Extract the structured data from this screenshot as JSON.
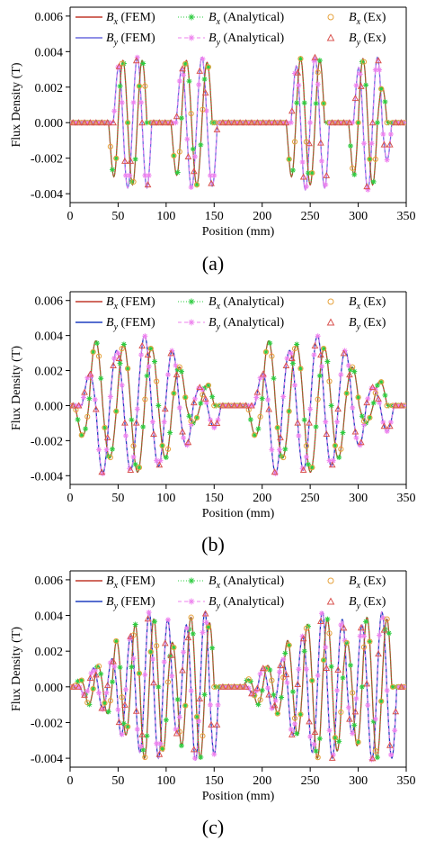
{
  "chart_data": [
    {
      "type": "line",
      "panel_label": "(a)",
      "xlabel": "Position (mm)",
      "ylabel": "Flux Density (T)",
      "xlim": [
        0,
        350
      ],
      "ylim": [
        -0.0045,
        0.0065
      ],
      "xticks": [
        "0",
        "50",
        "100",
        "150",
        "200",
        "250",
        "300",
        "350"
      ],
      "yticks": [
        "-0.004",
        "-0.002",
        "0.000",
        "0.002",
        "0.004",
        "0.006"
      ],
      "legend_position": "top",
      "legend": [
        {
          "sym": "B",
          "sub": "x",
          "text": " (FEM)",
          "color": "#c0392b",
          "style": "solid"
        },
        {
          "sym": "B",
          "sub": "x",
          "text": " (Analytical)",
          "color": "#2ecc40",
          "style": "dotted-star"
        },
        {
          "sym": "B",
          "sub": "x",
          "text": " (Ex)",
          "color": "#e6a23c",
          "style": "circle"
        },
        {
          "sym": "B",
          "sub": "y",
          "text": " (FEM)",
          "color": "#6a6adf",
          "style": "solid"
        },
        {
          "sym": "B",
          "sub": "y",
          "text": " (Analytical)",
          "color": "#ee82ee",
          "style": "dashed-star"
        },
        {
          "sym": "B",
          "sub": "y",
          "text": " (Ex)",
          "color": "#d9534f",
          "style": "triangle"
        }
      ],
      "series": [
        {
          "name": "Bx",
          "bursts": [
            {
              "x0": 40,
              "x1": 80,
              "peaks": [
                -0.0035,
                0.0035,
                -0.0035,
                0.0035
              ]
            },
            {
              "x0": 105,
              "x1": 148,
              "peaks": [
                -0.0034,
                0.0035,
                -0.0035,
                0.0034
              ]
            },
            {
              "x0": 225,
              "x1": 265,
              "peaks": [
                -0.0035,
                0.0036,
                -0.0035,
                0.0035
              ]
            },
            {
              "x0": 290,
              "x1": 330,
              "peaks": [
                -0.0034,
                0.0036,
                -0.0035,
                0.002
              ]
            }
          ]
        },
        {
          "name": "By",
          "phase": 0.25
        }
      ]
    },
    {
      "type": "line",
      "panel_label": "(b)",
      "xlabel": "Position (mm)",
      "ylabel": "Flux Density (T)",
      "xlim": [
        0,
        350
      ],
      "ylim": [
        -0.0045,
        0.0065
      ],
      "xticks": [
        "0",
        "50",
        "100",
        "150",
        "200",
        "250",
        "300",
        "350"
      ],
      "yticks": [
        "-0.004",
        "-0.002",
        "0.000",
        "0.002",
        "0.004",
        "0.006"
      ],
      "legend_position": "top",
      "legend": [
        {
          "sym": "B",
          "sub": "x",
          "text": " (FEM)",
          "color": "#c0392b",
          "style": "solid"
        },
        {
          "sym": "B",
          "sub": "x",
          "text": " (Analytical)",
          "color": "#2ecc40",
          "style": "dotted-star"
        },
        {
          "sym": "B",
          "sub": "x",
          "text": " (Ex)",
          "color": "#e6a23c",
          "style": "circle"
        },
        {
          "sym": "B",
          "sub": "y",
          "text": " (FEM)",
          "color": "#1f3fbf",
          "style": "solid"
        },
        {
          "sym": "B",
          "sub": "y",
          "text": " (Analytical)",
          "color": "#ee82ee",
          "style": "dashed-star"
        },
        {
          "sym": "B",
          "sub": "y",
          "text": " (Ex)",
          "color": "#d9534f",
          "style": "triangle"
        }
      ],
      "series": [
        {
          "name": "Bx",
          "bursts": [
            {
              "x0": 5,
              "x1": 150,
              "peaks": [
                -0.002,
                0.0037,
                -0.003,
                0.0035,
                -0.0038,
                0.0033,
                -0.003,
                0.0022,
                -0.001,
                0.0012
              ]
            },
            {
              "x0": 185,
              "x1": 330,
              "peaks": [
                -0.002,
                0.0037,
                -0.003,
                0.0035,
                -0.0038,
                0.0033,
                -0.003,
                0.0022,
                -0.001,
                0.0014
              ]
            }
          ]
        },
        {
          "name": "By",
          "phase": 0.25
        }
      ]
    },
    {
      "type": "line",
      "panel_label": "(c)",
      "xlabel": "Position (mm)",
      "ylabel": "Flux Density (T)",
      "xlim": [
        0,
        350
      ],
      "ylim": [
        -0.0045,
        0.0065
      ],
      "xticks": [
        "0",
        "50",
        "100",
        "150",
        "200",
        "250",
        "300",
        "350"
      ],
      "yticks": [
        "-0.004",
        "-0.002",
        "0.000",
        "0.002",
        "0.004",
        "0.006"
      ],
      "legend_position": "top",
      "legend": [
        {
          "sym": "B",
          "sub": "x",
          "text": " (FEM)",
          "color": "#c0392b",
          "style": "solid"
        },
        {
          "sym": "B",
          "sub": "x",
          "text": " (Analytical)",
          "color": "#2ecc40",
          "style": "dotted-star"
        },
        {
          "sym": "B",
          "sub": "x",
          "text": " (Ex)",
          "color": "#e6a23c",
          "style": "circle"
        },
        {
          "sym": "B",
          "sub": "y",
          "text": " (FEM)",
          "color": "#1f3fbf",
          "style": "solid"
        },
        {
          "sym": "B",
          "sub": "y",
          "text": " (Analytical)",
          "color": "#ee82ee",
          "style": "dashed-star"
        },
        {
          "sym": "B",
          "sub": "y",
          "text": " (Ex)",
          "color": "#d9534f",
          "style": "triangle"
        }
      ],
      "series": [
        {
          "name": "Bx",
          "bursts": [
            {
              "x0": 5,
              "x1": 150,
              "peaks": [
                0.0005,
                -0.001,
                0.0012,
                -0.0015,
                0.0026,
                -0.0027,
                0.0035,
                -0.004,
                0.0038,
                -0.0036,
                0.0025,
                -0.0033,
                0.0039,
                -0.004,
                0.0036
              ]
            },
            {
              "x0": 180,
              "x1": 335,
              "peaks": [
                0.0005,
                -0.001,
                0.0012,
                -0.0015,
                0.0026,
                -0.0027,
                0.0035,
                -0.004,
                0.0038,
                -0.0036,
                0.0025,
                -0.0033,
                0.0039,
                -0.004,
                0.0038
              ]
            }
          ]
        },
        {
          "name": "By",
          "phase": 0.25
        }
      ]
    }
  ]
}
